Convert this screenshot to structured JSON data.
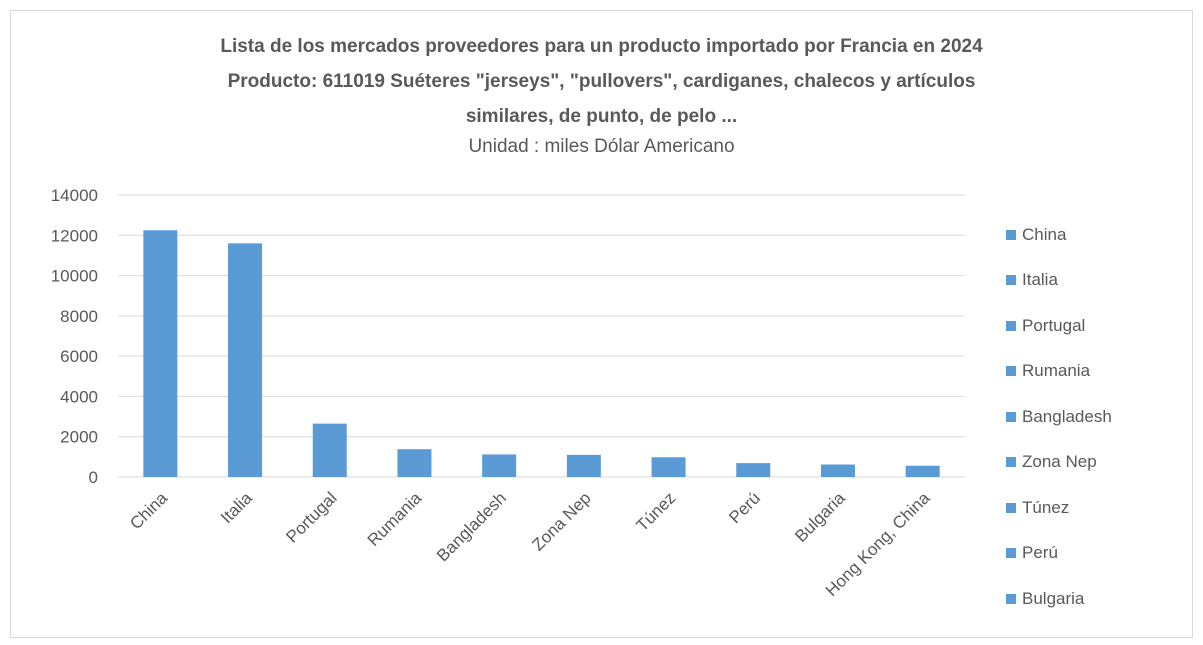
{
  "chart_data": {
    "type": "bar",
    "title_lines": [
      "Lista de los mercados proveedores para un producto importado por Francia en 2024",
      "Producto: 611019 Suéteres \"jerseys\", \"pullovers\", cardiganes, chalecos y artículos",
      "similares, de punto, de pelo ..."
    ],
    "subtitle": "Unidad : miles Dólar Americano",
    "categories": [
      "China",
      "Italia",
      "Portugal",
      "Rumania",
      "Bangladesh",
      "Zona Nep",
      "Túnez",
      "Perú",
      "Bulgaria",
      "Hong Kong, China"
    ],
    "values": [
      12250,
      11600,
      2650,
      1380,
      1120,
      1100,
      980,
      690,
      620,
      560
    ],
    "yticks": [
      "0",
      "2000",
      "4000",
      "6000",
      "8000",
      "10000",
      "12000",
      "14000"
    ],
    "ylim": [
      0,
      14000
    ],
    "grid": true,
    "legend_position": "right",
    "legend": [
      "China",
      "Italia",
      "Portugal",
      "Rumania",
      "Bangladesh",
      "Zona Nep",
      "Túnez",
      "Perú",
      "Bulgaria"
    ],
    "color": "#5b9bd5"
  }
}
